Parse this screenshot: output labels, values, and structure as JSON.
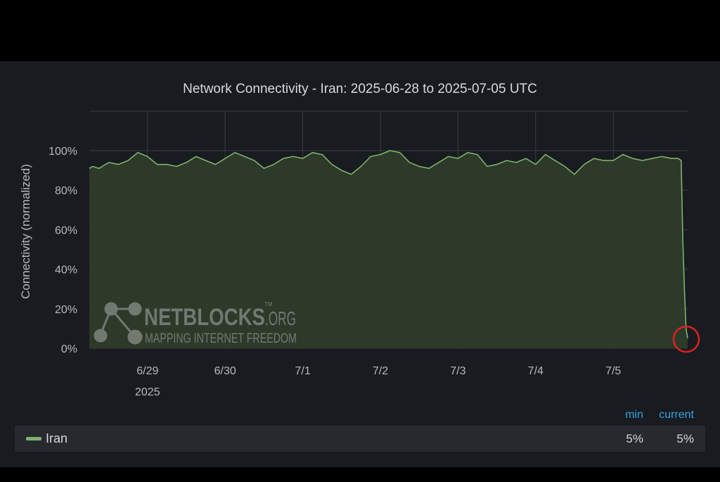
{
  "colors": {
    "series": "#7eb26d",
    "fill": "#2e3b2a",
    "background": "#181b1f",
    "legend_header": "#33a2e5",
    "highlight_circle": "#e02020"
  },
  "watermark": {
    "brand": "NETBLOCKS",
    "domain": ".ORG",
    "tm": "TM",
    "tagline": "MAPPING INTERNET FREEDOM"
  },
  "legend": {
    "min_header": "min",
    "current_header": "current",
    "series_name": "Iran",
    "min_value": "5%",
    "current_value": "5%"
  },
  "chart_data": {
    "type": "area",
    "title": "Network Connectivity - Iran: 2025-06-28 to 2025-07-05 UTC",
    "ylabel": "Connectivity (normalized)",
    "xlabel": "",
    "ylim": [
      0,
      100
    ],
    "xlim": [
      "2025-06-28T06:00",
      "2025-07-05T23:00"
    ],
    "y_ticks": [
      "0%",
      "20%",
      "40%",
      "60%",
      "80%",
      "100%"
    ],
    "x_ticks": [
      {
        "date": "2025-06-29",
        "label": "6/29"
      },
      {
        "date": "2025-06-30",
        "label": "6/30"
      },
      {
        "date": "2025-07-01",
        "label": "7/1"
      },
      {
        "date": "2025-07-02",
        "label": "7/2"
      },
      {
        "date": "2025-07-03",
        "label": "7/3"
      },
      {
        "date": "2025-07-04",
        "label": "7/4"
      },
      {
        "date": "2025-07-05",
        "label": "7/5"
      }
    ],
    "year_label": "2025",
    "grid": true,
    "legend": "bottom",
    "series": [
      {
        "name": "Iran",
        "x": [
          "2025-06-28T06:00",
          "2025-06-28T07:00",
          "2025-06-28T09:00",
          "2025-06-28T12:00",
          "2025-06-28T15:00",
          "2025-06-28T18:00",
          "2025-06-28T21:00",
          "2025-06-29T00:00",
          "2025-06-29T03:00",
          "2025-06-29T06:00",
          "2025-06-29T09:00",
          "2025-06-29T12:00",
          "2025-06-29T15:00",
          "2025-06-29T18:00",
          "2025-06-29T21:00",
          "2025-06-30T00:00",
          "2025-06-30T03:00",
          "2025-06-30T06:00",
          "2025-06-30T09:00",
          "2025-06-30T12:00",
          "2025-06-30T15:00",
          "2025-06-30T18:00",
          "2025-06-30T21:00",
          "2025-07-01T00:00",
          "2025-07-01T03:00",
          "2025-07-01T06:00",
          "2025-07-01T09:00",
          "2025-07-01T12:00",
          "2025-07-01T15:00",
          "2025-07-01T18:00",
          "2025-07-01T21:00",
          "2025-07-02T00:00",
          "2025-07-02T03:00",
          "2025-07-02T06:00",
          "2025-07-02T09:00",
          "2025-07-02T12:00",
          "2025-07-02T15:00",
          "2025-07-02T18:00",
          "2025-07-02T21:00",
          "2025-07-03T00:00",
          "2025-07-03T03:00",
          "2025-07-03T06:00",
          "2025-07-03T09:00",
          "2025-07-03T12:00",
          "2025-07-03T15:00",
          "2025-07-03T18:00",
          "2025-07-03T21:00",
          "2025-07-04T00:00",
          "2025-07-04T03:00",
          "2025-07-04T06:00",
          "2025-07-04T09:00",
          "2025-07-04T12:00",
          "2025-07-04T15:00",
          "2025-07-04T18:00",
          "2025-07-04T21:00",
          "2025-07-05T00:00",
          "2025-07-05T03:00",
          "2025-07-05T06:00",
          "2025-07-05T09:00",
          "2025-07-05T12:00",
          "2025-07-05T15:00",
          "2025-07-05T18:00",
          "2025-07-05T20:00",
          "2025-07-05T21:00",
          "2025-07-05T21:30",
          "2025-07-05T22:00",
          "2025-07-05T22:30",
          "2025-07-05T23:00"
        ],
        "values": [
          91,
          92,
          91,
          94,
          93,
          95,
          99,
          97,
          93,
          93,
          92,
          94,
          97,
          95,
          93,
          96,
          99,
          97,
          95,
          91,
          93,
          96,
          97,
          96,
          99,
          98,
          93,
          90,
          88,
          92,
          97,
          98,
          100,
          99,
          94,
          92,
          91,
          94,
          97,
          96,
          99,
          98,
          92,
          93,
          95,
          94,
          96,
          93,
          98,
          95,
          92,
          88,
          93,
          96,
          95,
          95,
          98,
          96,
          95,
          96,
          97,
          96,
          96,
          95,
          55,
          30,
          10,
          5
        ]
      }
    ]
  }
}
